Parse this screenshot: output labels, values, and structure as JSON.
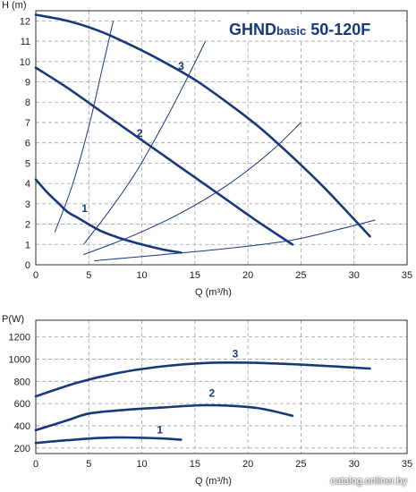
{
  "watermark": "catalog.onliner.by",
  "colors": {
    "curve": "#17397a",
    "grid": "#9aa3b3",
    "frame": "#2a2a2a",
    "text": "#1a1a1a",
    "title": "#17397a"
  },
  "chart_data": [
    {
      "type": "line",
      "title": "GHND",
      "title_small": "basic",
      "title_tail": " 50-120F",
      "xlabel": "Q (m³/h)",
      "ylabel": "H (m)",
      "xlim": [
        0,
        35
      ],
      "ylim": [
        0,
        12.5
      ],
      "xticks": [
        "0",
        "5",
        "10",
        "15",
        "20",
        "25",
        "30",
        "35"
      ],
      "yticks": [
        "0",
        "1",
        "2",
        "3",
        "4",
        "5",
        "6",
        "7",
        "8",
        "9",
        "10",
        "11",
        "12"
      ],
      "grid": true,
      "series": [
        {
          "name": "1",
          "x": [
            0,
            1,
            2,
            3,
            4,
            6,
            8,
            10,
            12,
            13.7
          ],
          "y": [
            4.2,
            3.6,
            3.1,
            2.6,
            2.3,
            1.7,
            1.3,
            1.0,
            0.75,
            0.6
          ]
        },
        {
          "name": "2",
          "x": [
            0,
            3,
            6,
            9,
            12,
            15,
            18,
            21,
            24.2
          ],
          "y": [
            9.7,
            8.7,
            7.6,
            6.5,
            5.4,
            4.3,
            3.2,
            2.1,
            1.0
          ]
        },
        {
          "name": "3",
          "x": [
            0,
            3,
            6,
            9,
            12,
            15,
            18,
            21,
            24,
            27,
            29,
            31.5
          ],
          "y": [
            12.3,
            12.0,
            11.5,
            10.8,
            10.0,
            9.1,
            8.0,
            6.8,
            5.4,
            3.9,
            2.8,
            1.4
          ]
        }
      ],
      "system_curves": [
        {
          "x": [
            1.8,
            3.5,
            5.0,
            6.2,
            7.3
          ],
          "y": [
            1.6,
            4.0,
            6.8,
            9.5,
            12.0
          ]
        },
        {
          "x": [
            4.5,
            7.0,
            9.5,
            12.0,
            14.0,
            16.0
          ],
          "y": [
            1.0,
            2.7,
            4.6,
            6.9,
            8.9,
            11.0
          ]
        },
        {
          "x": [
            4.5,
            9.0,
            13.5,
            18.0,
            22.0,
            25.0
          ],
          "y": [
            0.5,
            1.4,
            2.5,
            3.9,
            5.5,
            7.0
          ]
        },
        {
          "x": [
            5.5,
            12.0,
            18.0,
            24.0,
            29.0,
            32.0
          ],
          "y": [
            0.2,
            0.5,
            0.8,
            1.2,
            1.8,
            2.2
          ]
        }
      ],
      "curve_labels": [
        {
          "text": "1",
          "x": 4.6,
          "y": 2.6
        },
        {
          "text": "2",
          "x": 9.8,
          "y": 6.3
        },
        {
          "text": "3",
          "x": 13.7,
          "y": 9.6
        }
      ]
    },
    {
      "type": "line",
      "xlabel": "Q (m³/h)",
      "ylabel": "P(W)",
      "xlim": [
        0,
        35
      ],
      "ylim": [
        150,
        1350
      ],
      "xticks": [
        "0",
        "5",
        "10",
        "15",
        "20",
        "25",
        "30",
        "35"
      ],
      "yticks": [
        "200",
        "400",
        "600",
        "800",
        "1000",
        "1200"
      ],
      "grid": true,
      "series": [
        {
          "name": "1",
          "x": [
            0,
            3,
            6,
            8,
            10,
            12,
            13.7
          ],
          "y": [
            245,
            270,
            290,
            295,
            292,
            285,
            275
          ]
        },
        {
          "name": "2",
          "x": [
            0,
            3,
            5,
            8,
            12,
            16,
            20,
            22,
            24.2
          ],
          "y": [
            360,
            450,
            510,
            540,
            565,
            585,
            570,
            540,
            490
          ]
        },
        {
          "name": "3",
          "x": [
            0,
            4,
            8,
            12,
            16,
            20,
            24,
            28,
            31.5
          ],
          "y": [
            665,
            790,
            880,
            935,
            965,
            968,
            955,
            935,
            915
          ]
        }
      ],
      "curve_labels": [
        {
          "text": "1",
          "x": 11.7,
          "y": 330
        },
        {
          "text": "2",
          "x": 16.6,
          "y": 660
        },
        {
          "text": "3",
          "x": 18.8,
          "y": 1015
        }
      ]
    }
  ]
}
